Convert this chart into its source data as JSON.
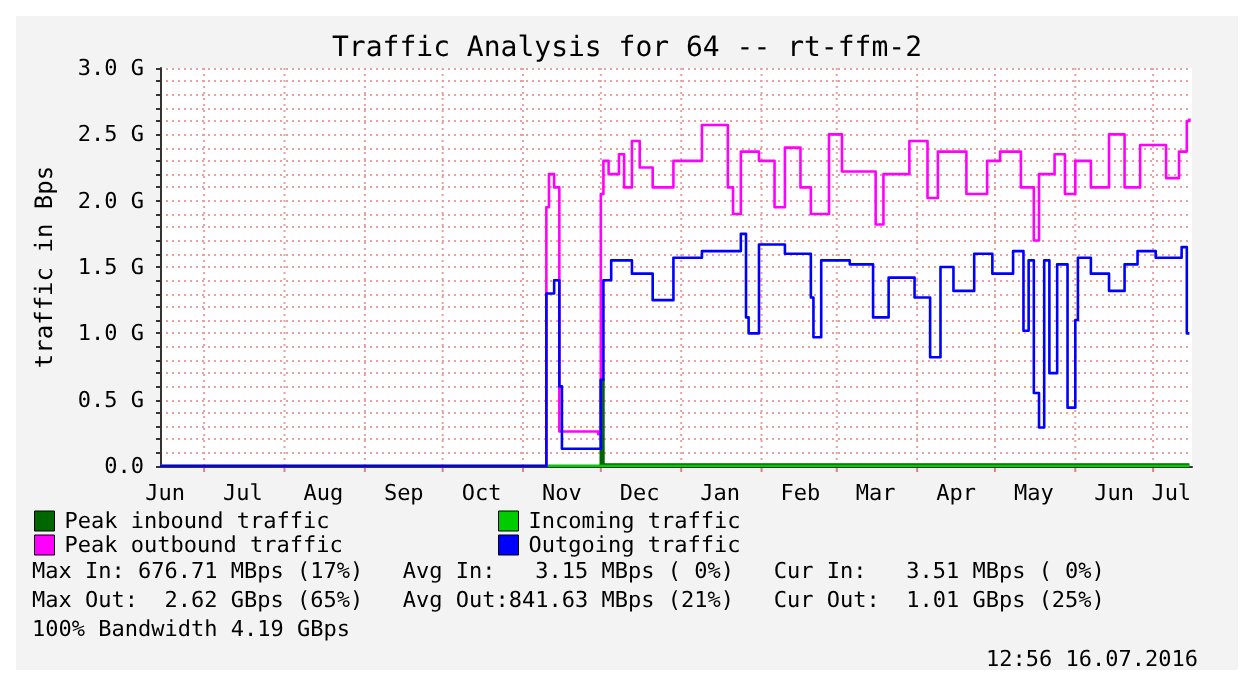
{
  "chart_data": {
    "type": "step",
    "title": "Traffic Analysis for 64 -- rt-ffm-2",
    "ylabel": "traffic in Bps",
    "xlim": [
      "2015-06-14",
      "2016-07-16"
    ],
    "xticks": [
      {
        "value": "2015-06-16",
        "label": "Jun"
      },
      {
        "value": "2015-07-01",
        "label": null
      },
      {
        "value": "2015-07-16",
        "label": "Jul"
      },
      {
        "value": "2015-08-01",
        "label": null
      },
      {
        "value": "2015-08-16",
        "label": "Aug"
      },
      {
        "value": "2015-09-01",
        "label": null
      },
      {
        "value": "2015-09-16",
        "label": "Sep"
      },
      {
        "value": "2015-10-01",
        "label": null
      },
      {
        "value": "2015-10-16",
        "label": "Oct"
      },
      {
        "value": "2015-11-01",
        "label": null
      },
      {
        "value": "2015-11-16",
        "label": "Nov"
      },
      {
        "value": "2015-12-01",
        "label": null
      },
      {
        "value": "2015-12-16",
        "label": "Dec"
      },
      {
        "value": "2016-01-01",
        "label": null
      },
      {
        "value": "2016-01-16",
        "label": "Jan"
      },
      {
        "value": "2016-02-01",
        "label": null
      },
      {
        "value": "2016-02-16",
        "label": "Feb"
      },
      {
        "value": "2016-03-01",
        "label": null
      },
      {
        "value": "2016-03-16",
        "label": "Mar"
      },
      {
        "value": "2016-04-01",
        "label": null
      },
      {
        "value": "2016-04-16",
        "label": "Apr"
      },
      {
        "value": "2016-05-01",
        "label": null
      },
      {
        "value": "2016-05-16",
        "label": "May"
      },
      {
        "value": "2016-06-01",
        "label": null
      },
      {
        "value": "2016-06-16",
        "label": "Jun"
      },
      {
        "value": "2016-07-01",
        "label": null
      },
      {
        "value": "2016-07-08",
        "label": "Jul"
      }
    ],
    "ylim": [
      0,
      3
    ],
    "yticks": [
      {
        "value": 0,
        "label": "0.0"
      },
      {
        "value": 0.1,
        "label": null
      },
      {
        "value": 0.2,
        "label": null
      },
      {
        "value": 0.3,
        "label": null
      },
      {
        "value": 0.4,
        "label": null
      },
      {
        "value": 0.5,
        "label": "0.5 G"
      },
      {
        "value": 0.6,
        "label": null
      },
      {
        "value": 0.7,
        "label": null
      },
      {
        "value": 0.8,
        "label": null
      },
      {
        "value": 0.9,
        "label": null
      },
      {
        "value": 1,
        "label": "1.0 G"
      },
      {
        "value": 1.1,
        "label": null
      },
      {
        "value": 1.2,
        "label": null
      },
      {
        "value": 1.3,
        "label": null
      },
      {
        "value": 1.4,
        "label": null
      },
      {
        "value": 1.5,
        "label": "1.5 G"
      },
      {
        "value": 1.6,
        "label": null
      },
      {
        "value": 1.7,
        "label": null
      },
      {
        "value": 1.8,
        "label": null
      },
      {
        "value": 1.9,
        "label": null
      },
      {
        "value": 2,
        "label": "2.0 G"
      },
      {
        "value": 2.1,
        "label": null
      },
      {
        "value": 2.2,
        "label": null
      },
      {
        "value": 2.3,
        "label": null
      },
      {
        "value": 2.4,
        "label": null
      },
      {
        "value": 2.5,
        "label": "2.5 G"
      },
      {
        "value": 2.6,
        "label": null
      },
      {
        "value": 2.7,
        "label": null
      },
      {
        "value": 2.8,
        "label": null
      },
      {
        "value": 2.9,
        "label": null
      },
      {
        "value": 3,
        "label": "3.0 G"
      }
    ],
    "grid": true,
    "legend": "bottom left",
    "marker": "none",
    "line_style": "solid",
    "series": [
      {
        "name": "Peak inbound traffic",
        "color": "#006600",
        "x": [
          "2015-06-14",
          "2015-11-30",
          "2015-12-01",
          "2015-12-02",
          "2016-07-15"
        ],
        "values": [
          0,
          0,
          0.65,
          0.01,
          0.01
        ]
      },
      {
        "name": "Incoming traffic",
        "color": "#00cc00",
        "x": [
          "2015-06-14",
          "2016-07-15"
        ],
        "values": [
          0,
          0
        ]
      },
      {
        "name": "Peak outbound traffic",
        "color": "#ff00ff",
        "x": [
          "2015-06-14",
          "2015-11-09",
          "2015-11-10",
          "2015-11-11",
          "2015-11-13",
          "2015-11-15",
          "2015-11-30",
          "2015-12-01",
          "2015-12-02",
          "2015-12-04",
          "2015-12-08",
          "2015-12-10",
          "2015-12-13",
          "2015-12-16",
          "2015-12-21",
          "2015-12-29",
          "2016-01-09",
          "2016-01-19",
          "2016-01-21",
          "2016-01-24",
          "2016-01-31",
          "2016-02-06",
          "2016-02-10",
          "2016-02-16",
          "2016-02-20",
          "2016-02-27",
          "2016-03-03",
          "2016-03-16",
          "2016-03-19",
          "2016-03-29",
          "2016-04-05",
          "2016-04-09",
          "2016-04-20",
          "2016-04-28",
          "2016-05-03",
          "2016-05-11",
          "2016-05-16",
          "2016-05-18",
          "2016-05-24",
          "2016-05-28",
          "2016-06-01",
          "2016-06-07",
          "2016-06-14",
          "2016-06-20",
          "2016-06-26",
          "2016-07-06",
          "2016-07-11",
          "2016-07-14",
          "2016-07-15"
        ],
        "values": [
          0,
          0,
          1.95,
          2.2,
          2.1,
          0.26,
          0.24,
          2.05,
          2.3,
          2.2,
          2.35,
          2.1,
          2.45,
          2.25,
          2.1,
          2.3,
          2.57,
          2.1,
          1.9,
          2.37,
          2.3,
          1.95,
          2.4,
          2.1,
          1.9,
          2.5,
          2.22,
          1.82,
          2.2,
          2.45,
          2.02,
          2.37,
          2.05,
          2.3,
          2.37,
          2.1,
          1.7,
          2.2,
          2.35,
          2.05,
          2.3,
          2.1,
          2.5,
          2.1,
          2.42,
          2.17,
          2.37,
          2.6,
          2.62
        ]
      },
      {
        "name": "Outgoing traffic",
        "color": "#0000ff",
        "x": [
          "2015-06-14",
          "2015-11-09",
          "2015-11-10",
          "2015-11-13",
          "2015-11-15",
          "2015-11-16",
          "2015-11-30",
          "2015-12-01",
          "2015-12-02",
          "2015-12-05",
          "2015-12-13",
          "2015-12-21",
          "2015-12-29",
          "2016-01-09",
          "2016-01-24",
          "2016-01-26",
          "2016-01-27",
          "2016-01-31",
          "2016-02-10",
          "2016-02-20",
          "2016-02-21",
          "2016-02-24",
          "2016-03-06",
          "2016-03-15",
          "2016-03-21",
          "2016-03-31",
          "2016-04-06",
          "2016-04-10",
          "2016-04-15",
          "2016-04-23",
          "2016-04-30",
          "2016-05-08",
          "2016-05-12",
          "2016-05-14",
          "2016-05-16",
          "2016-05-18",
          "2016-05-20",
          "2016-05-22",
          "2016-05-25",
          "2016-05-29",
          "2016-06-01",
          "2016-06-02",
          "2016-06-07",
          "2016-06-14",
          "2016-06-20",
          "2016-06-25",
          "2016-07-02",
          "2016-07-12",
          "2016-07-14",
          "2016-07-15"
        ],
        "values": [
          0,
          0,
          1.3,
          1.4,
          0.6,
          0.13,
          0.13,
          0.65,
          1.4,
          1.55,
          1.45,
          1.25,
          1.57,
          1.62,
          1.75,
          1.12,
          1.0,
          1.67,
          1.6,
          1.27,
          0.97,
          1.55,
          1.52,
          1.12,
          1.42,
          1.27,
          0.82,
          1.5,
          1.32,
          1.6,
          1.45,
          1.62,
          1.02,
          1.55,
          0.55,
          0.29,
          1.55,
          0.7,
          1.52,
          0.44,
          1.1,
          1.57,
          1.45,
          1.32,
          1.52,
          1.62,
          1.57,
          1.65,
          1.0,
          1.01
        ]
      }
    ],
    "annotations": [
      "Max In: 676.71 MBps (17%)   Avg In:   3.15 MBps ( 0%)   Cur In:   3.51 MBps ( 0%)",
      "Max Out:  2.62 GBps (65%)   Avg Out:841.63 MBps (21%)   Cur Out:  1.01 GBps (25%)",
      "100% Bandwidth 4.19 GBps",
      "12:56 16.07.2016"
    ]
  }
}
